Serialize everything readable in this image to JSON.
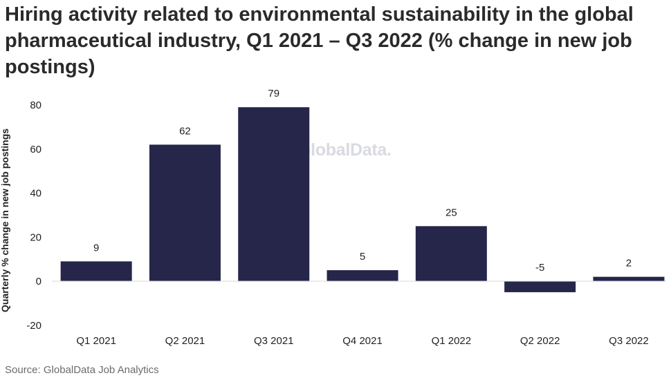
{
  "title": "Hiring activity related to environmental sustainability in the global pharmaceutical industry, Q1 2021 – Q3 2022 (% change in new job postings)",
  "source": "Source: GlobalData Job Analytics",
  "watermark": "GlobalData.",
  "chart_data": {
    "type": "bar",
    "categories": [
      "Q1 2021",
      "Q2 2021",
      "Q3 2021",
      "Q4 2021",
      "Q1 2022",
      "Q2 2022",
      "Q3 2022"
    ],
    "values": [
      9,
      62,
      79,
      5,
      25,
      -5,
      2
    ],
    "data_labels": [
      "9",
      "62",
      "79",
      "5",
      "25",
      "-5",
      "2"
    ],
    "ylabel": "Quarterly % change in new job postings",
    "xlabel": "",
    "ylim": [
      -20,
      80
    ],
    "yticks": [
      -20,
      0,
      20,
      40,
      60,
      80
    ],
    "grid": false,
    "bar_color": "#25264a"
  }
}
